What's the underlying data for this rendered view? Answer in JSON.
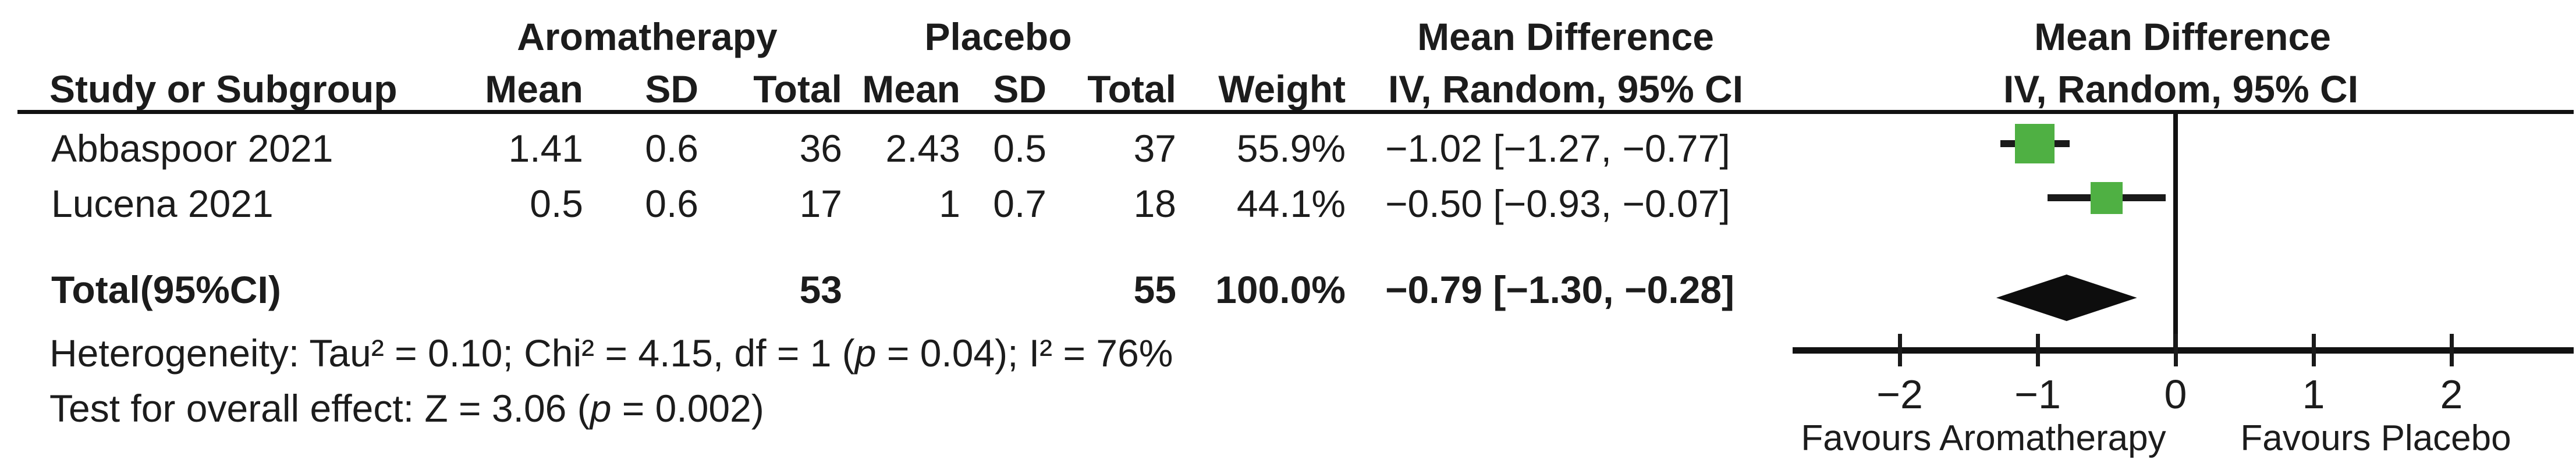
{
  "colors": {
    "square_green": "#4fb043",
    "diamond_black": "#0d0d0d",
    "line_black": "#111111",
    "text": "#1c1c1c"
  },
  "table": {
    "group_headers": {
      "experimental": "Aromatherapy",
      "control": "Placebo",
      "effect": "Mean Difference",
      "effect_plot": "Mean Difference"
    },
    "columns": {
      "study": "Study or Subgroup",
      "mean_exp": "Mean",
      "sd_exp": "SD",
      "total_exp": "Total",
      "mean_ctrl": "Mean",
      "sd_ctrl": "SD",
      "total_ctrl": "Total",
      "weight": "Weight",
      "ci": "IV, Random, 95% CI",
      "ci_plot": "IV, Random, 95% CI"
    },
    "rows": [
      {
        "study": "Abbaspoor 2021",
        "e_mean": "1.41",
        "e_sd": "0.6",
        "e_total": "36",
        "c_mean": "2.43",
        "c_sd": "0.5",
        "c_total": "37",
        "weight": "55.9%",
        "ci": "−1.02 [−1.27, −0.77]"
      },
      {
        "study": "Lucena 2021",
        "e_mean": "0.5",
        "e_sd": "0.6",
        "e_total": "17",
        "c_mean": "1",
        "c_sd": "0.7",
        "c_total": "18",
        "weight": "44.1%",
        "ci": "−0.50 [−0.93, −0.07]"
      }
    ],
    "total_row": {
      "label": "Total(95%CI)",
      "e_total": "53",
      "c_total": "55",
      "weight": "100.0%",
      "ci": "−0.79 [−1.30, −0.28]"
    },
    "heterogeneity": {
      "pre": "Heterogeneity: Tau² = 0.10; Chi² = 4.15, df = 1 (",
      "p": "p",
      "post": " = 0.04); I² = 76%"
    },
    "overall": {
      "pre": "Test for overall effect: Z = 3.06 (",
      "p": "p",
      "post": " = 0.002)"
    }
  },
  "axis": {
    "tick_labels": [
      "−2",
      "−1",
      "0",
      "1",
      "2"
    ],
    "favours_left": "Favours Aromatherapy",
    "favours_right": "Favours Placebo"
  },
  "chart_data": {
    "type": "forest",
    "title": "",
    "effect_measure": "Mean Difference",
    "model": "IV, Random, 95% CI",
    "groups": [
      "Aromatherapy",
      "Placebo"
    ],
    "studies": [
      {
        "name": "Abbaspoor 2021",
        "exp": {
          "mean": 1.41,
          "sd": 0.6,
          "total": 36
        },
        "ctrl": {
          "mean": 2.43,
          "sd": 0.5,
          "total": 37
        },
        "weight_pct": 55.9,
        "md": -1.02,
        "ci": [
          -1.27,
          -0.77
        ]
      },
      {
        "name": "Lucena 2021",
        "exp": {
          "mean": 0.5,
          "sd": 0.6,
          "total": 17
        },
        "ctrl": {
          "mean": 1,
          "sd": 0.7,
          "total": 18
        },
        "weight_pct": 44.1,
        "md": -0.5,
        "ci": [
          -0.93,
          -0.07
        ]
      }
    ],
    "total": {
      "md": -0.79,
      "ci": [
        -1.3,
        -0.28
      ],
      "n_experimental": 53,
      "n_control": 55,
      "weight_pct": 100.0
    },
    "x_ticks": [
      -2,
      -1,
      0,
      1,
      2
    ],
    "x_range": [
      -2.78,
      2.88
    ],
    "favours": [
      "Favours Aromatherapy",
      "Favours Placebo"
    ],
    "heterogeneity": {
      "tau2": 0.1,
      "chi2": 4.15,
      "df": 1,
      "p": 0.04,
      "i2_pct": 76
    },
    "overall_effect": {
      "z": 3.06,
      "p": 0.002
    },
    "legend_position": "none",
    "grid": false
  }
}
